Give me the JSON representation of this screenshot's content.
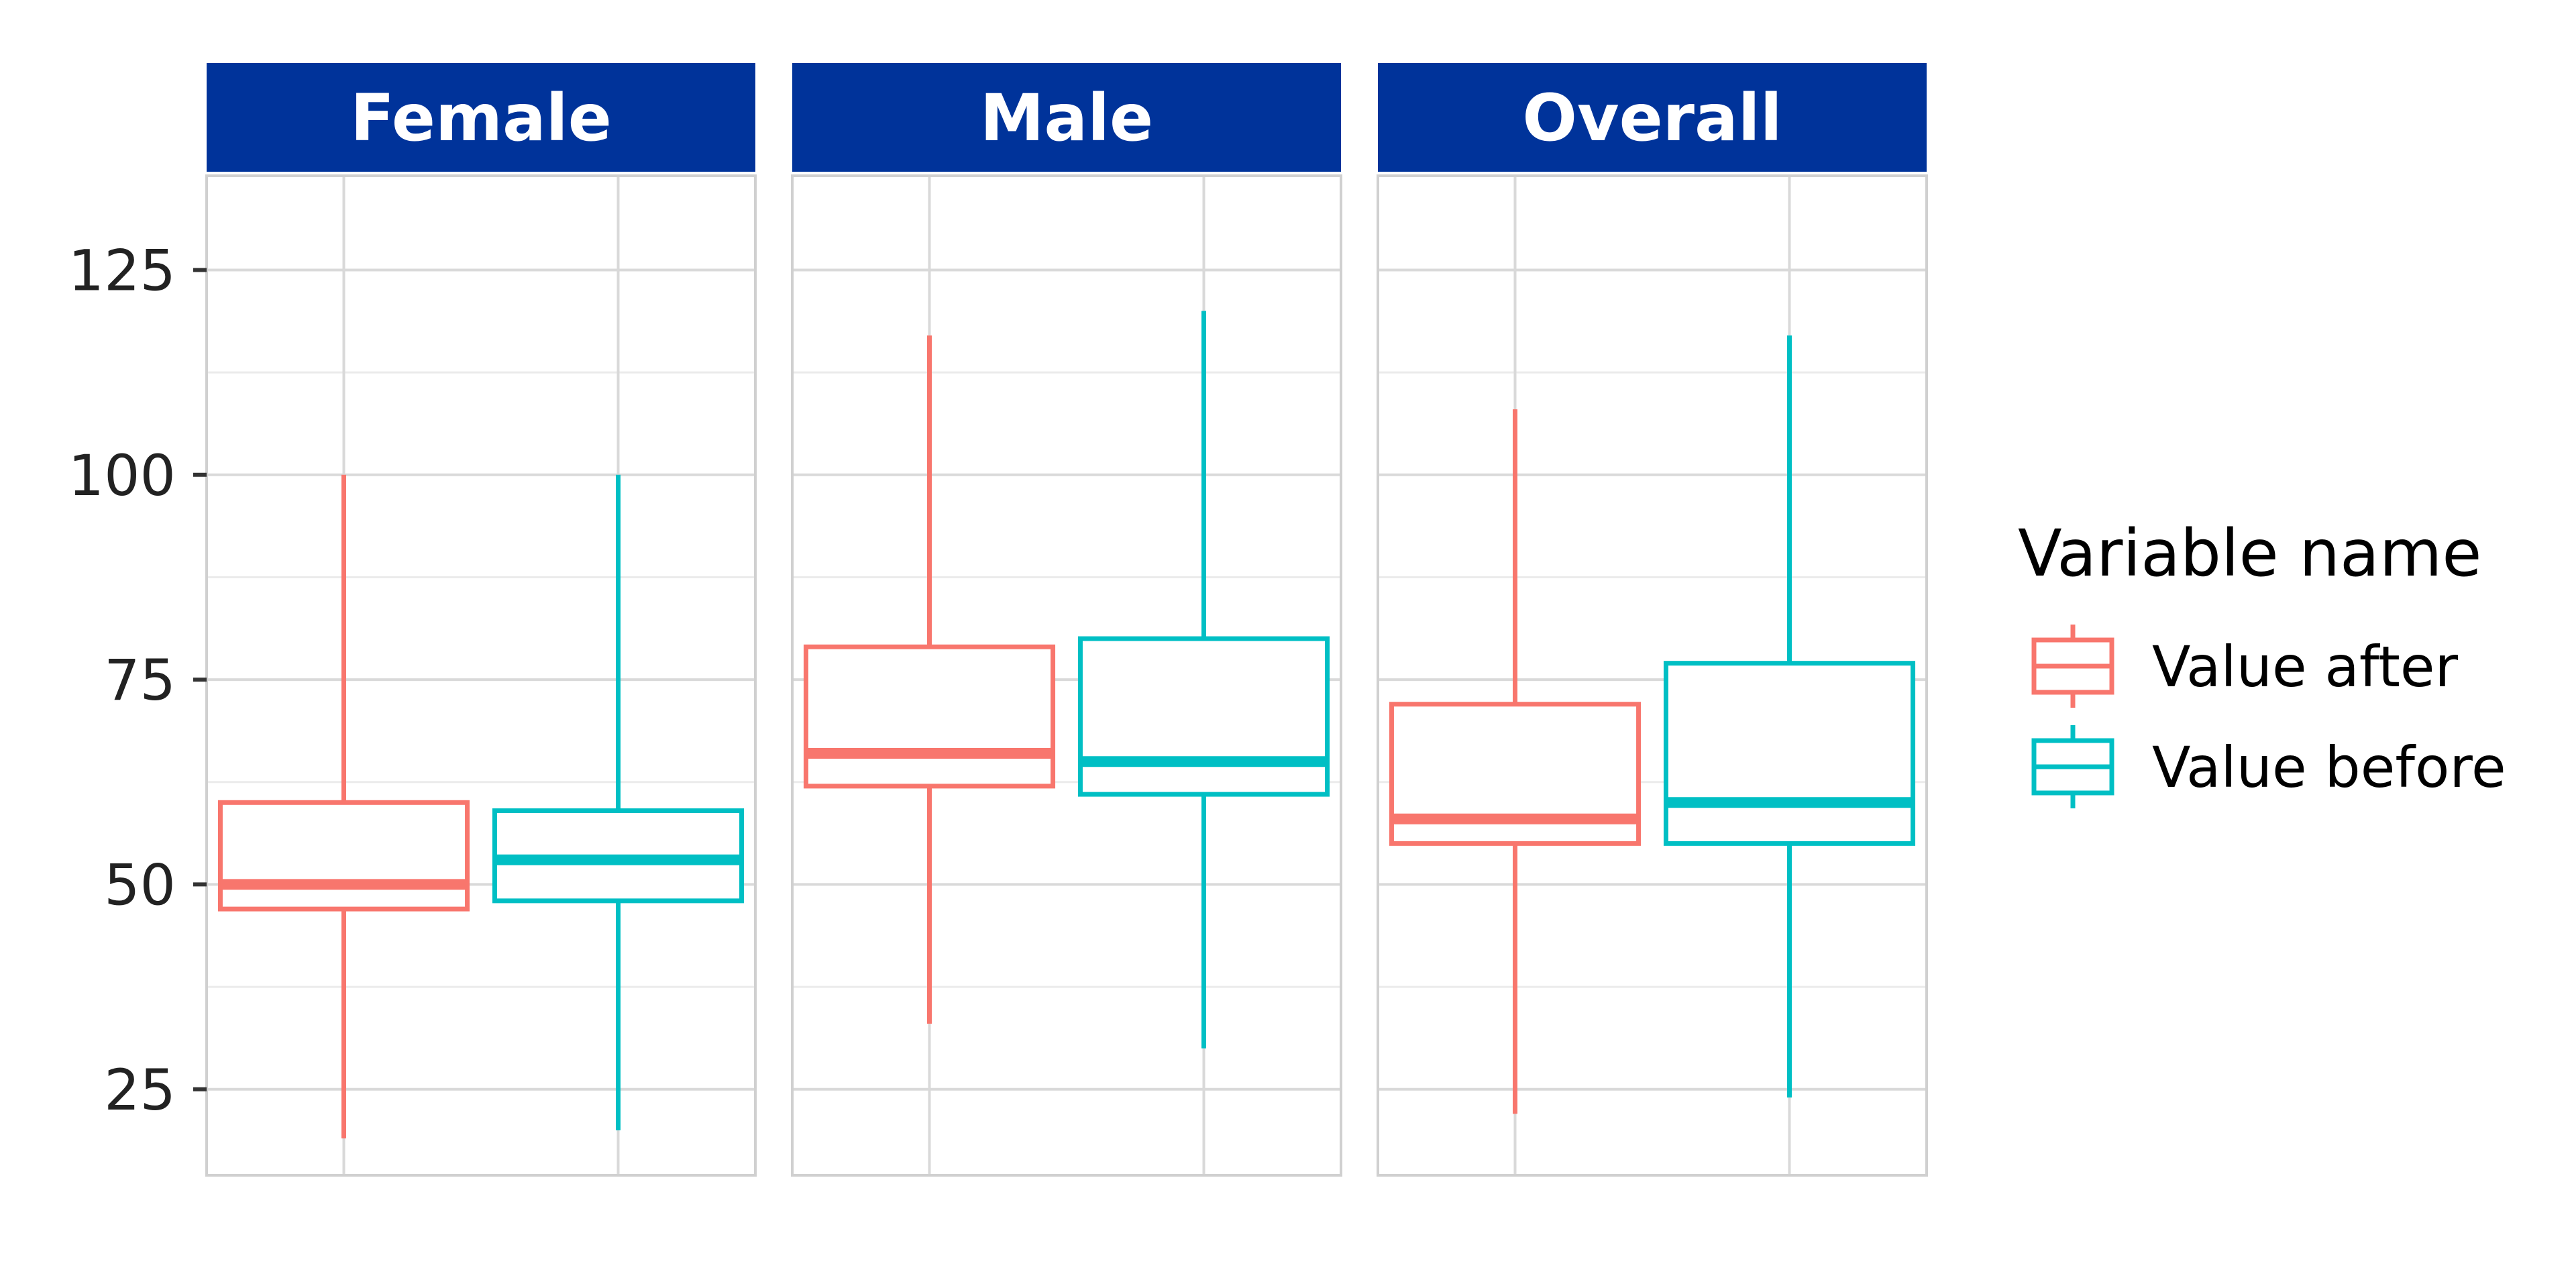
{
  "chart_data": {
    "type": "boxplot",
    "facets": [
      "Female",
      "Male",
      "Overall"
    ],
    "groups": [
      "Value after",
      "Value before"
    ],
    "colors": {
      "Value after": "#F8766D",
      "Value before": "#00BFC4",
      "strip": "#00339A"
    },
    "ylim": [
      14.5,
      136.5
    ],
    "y_ticks": [
      25,
      50,
      75,
      100,
      125
    ],
    "y_tick_labels": [
      "25",
      "50",
      "75",
      "100",
      "125"
    ],
    "grid": true,
    "legend": {
      "title": "Variable name",
      "position": "right",
      "entries": [
        "Value after",
        "Value before"
      ]
    },
    "boxes": [
      {
        "facet": "Female",
        "group": "Value after",
        "min": 19,
        "q1": 47,
        "median": 50,
        "q3": 60,
        "max": 100
      },
      {
        "facet": "Female",
        "group": "Value before",
        "min": 20,
        "q1": 48,
        "median": 53,
        "q3": 59,
        "max": 100
      },
      {
        "facet": "Male",
        "group": "Value after",
        "min": 33,
        "q1": 62,
        "median": 66,
        "q3": 79,
        "max": 117
      },
      {
        "facet": "Male",
        "group": "Value before",
        "min": 30,
        "q1": 61,
        "median": 65,
        "q3": 80,
        "max": 120
      },
      {
        "facet": "Overall",
        "group": "Value after",
        "min": 22,
        "q1": 55,
        "median": 58,
        "q3": 72,
        "max": 108
      },
      {
        "facet": "Overall",
        "group": "Value before",
        "min": 24,
        "q1": 55,
        "median": 60,
        "q3": 77,
        "max": 117
      }
    ]
  }
}
